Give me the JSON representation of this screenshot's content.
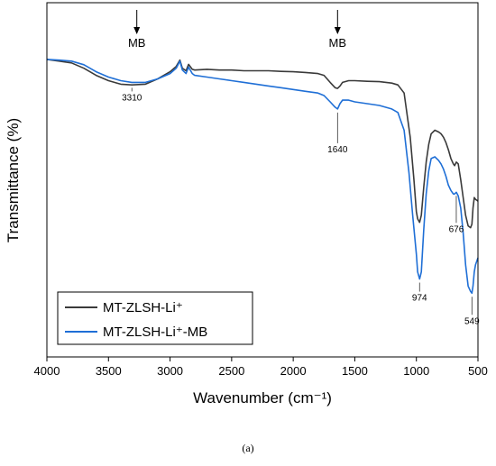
{
  "chart_data": {
    "type": "line",
    "xlabel": "Wavenumber (cm⁻¹)",
    "ylabel": "Transmittance (%)",
    "xlim": [
      4000,
      500
    ],
    "x_reversed": true,
    "x_ticks": [
      4000,
      3500,
      3000,
      2500,
      2000,
      1500,
      1000,
      500
    ],
    "y_ticks_shown": false,
    "grid": false,
    "legend_position": "bottom-left",
    "colors": {
      "series_1": "#3a3a3a",
      "series_2": "#1f6fd6"
    },
    "series": [
      {
        "name": "MT-ZLSH-Li⁺",
        "color": "#3a3a3a",
        "x": [
          4000,
          3900,
          3800,
          3700,
          3600,
          3500,
          3400,
          3310,
          3200,
          3100,
          3000,
          2950,
          2920,
          2900,
          2870,
          2850,
          2820,
          2800,
          2700,
          2600,
          2500,
          2400,
          2300,
          2200,
          2100,
          2000,
          1900,
          1800,
          1750,
          1700,
          1660,
          1640,
          1620,
          1600,
          1550,
          1500,
          1400,
          1300,
          1200,
          1150,
          1100,
          1050,
          1020,
          1000,
          990,
          974,
          960,
          940,
          920,
          900,
          880,
          850,
          820,
          800,
          780,
          760,
          740,
          720,
          700,
          690,
          676,
          660,
          640,
          620,
          600,
          580,
          560,
          549,
          540,
          530,
          520,
          500
        ],
        "y": [
          84.0,
          83.5,
          83.0,
          81.5,
          79.5,
          78.0,
          77.0,
          76.8,
          77.0,
          78.5,
          80.5,
          82.0,
          83.8,
          81.5,
          80.8,
          82.6,
          81.2,
          81.0,
          81.2,
          81.0,
          81.0,
          80.8,
          80.8,
          80.8,
          80.6,
          80.5,
          80.3,
          80.0,
          79.5,
          77.5,
          76.0,
          75.8,
          76.5,
          77.5,
          78.0,
          78.0,
          77.8,
          77.7,
          77.3,
          76.8,
          74.5,
          62.0,
          50.0,
          41.0,
          39.0,
          38.0,
          40.0,
          48.0,
          55.0,
          60.0,
          63.0,
          64.0,
          63.5,
          63.0,
          62.0,
          60.5,
          58.5,
          56.0,
          54.5,
          54.0,
          55.0,
          54.5,
          50.0,
          45.0,
          40.0,
          37.0,
          36.5,
          37.5,
          42.0,
          45.0,
          44.5,
          44.0
        ]
      },
      {
        "name": "MT-ZLSH-Li⁺-MB",
        "color": "#1f6fd6",
        "x": [
          4000,
          3900,
          3800,
          3700,
          3600,
          3500,
          3400,
          3310,
          3200,
          3100,
          3000,
          2950,
          2920,
          2900,
          2870,
          2850,
          2820,
          2800,
          2700,
          2600,
          2500,
          2400,
          2300,
          2200,
          2100,
          2000,
          1900,
          1800,
          1750,
          1700,
          1660,
          1640,
          1620,
          1600,
          1550,
          1500,
          1400,
          1300,
          1200,
          1150,
          1100,
          1060,
          1030,
          1000,
          990,
          974,
          960,
          940,
          920,
          900,
          880,
          850,
          820,
          800,
          780,
          760,
          740,
          720,
          700,
          690,
          676,
          660,
          640,
          620,
          600,
          580,
          560,
          549,
          540,
          530,
          520,
          500
        ],
        "y": [
          84.0,
          83.8,
          83.5,
          82.5,
          80.5,
          79.0,
          78.0,
          77.5,
          77.5,
          78.5,
          80.0,
          81.5,
          83.5,
          81.0,
          80.0,
          81.8,
          80.0,
          79.5,
          79.0,
          78.5,
          78.0,
          77.5,
          77.0,
          76.5,
          76.0,
          75.5,
          75.0,
          74.5,
          73.8,
          72.0,
          70.5,
          70.0,
          71.5,
          72.5,
          72.5,
          72.0,
          71.5,
          71.0,
          70.0,
          69.0,
          64.0,
          52.0,
          40.0,
          29.0,
          24.0,
          22.0,
          24.0,
          36.0,
          46.0,
          52.5,
          56.0,
          56.5,
          55.5,
          54.5,
          53.0,
          51.0,
          48.5,
          47.0,
          46.0,
          46.0,
          46.5,
          45.5,
          42.0,
          35.0,
          26.0,
          20.0,
          18.5,
          18.0,
          20.0,
          24.0,
          26.0,
          28.0
        ]
      }
    ],
    "annotations": [
      {
        "text": "3310",
        "x": 3310
      },
      {
        "text": "1640",
        "x": 1640
      },
      {
        "text": "974",
        "x": 974
      },
      {
        "text": "676",
        "x": 676
      },
      {
        "text": "549",
        "x": 549
      }
    ],
    "markers": [
      {
        "text": "MB",
        "x": 3270,
        "kind": "arrow"
      },
      {
        "text": "MB",
        "x": 1640,
        "kind": "arrow"
      }
    ],
    "caption": "(a)"
  }
}
